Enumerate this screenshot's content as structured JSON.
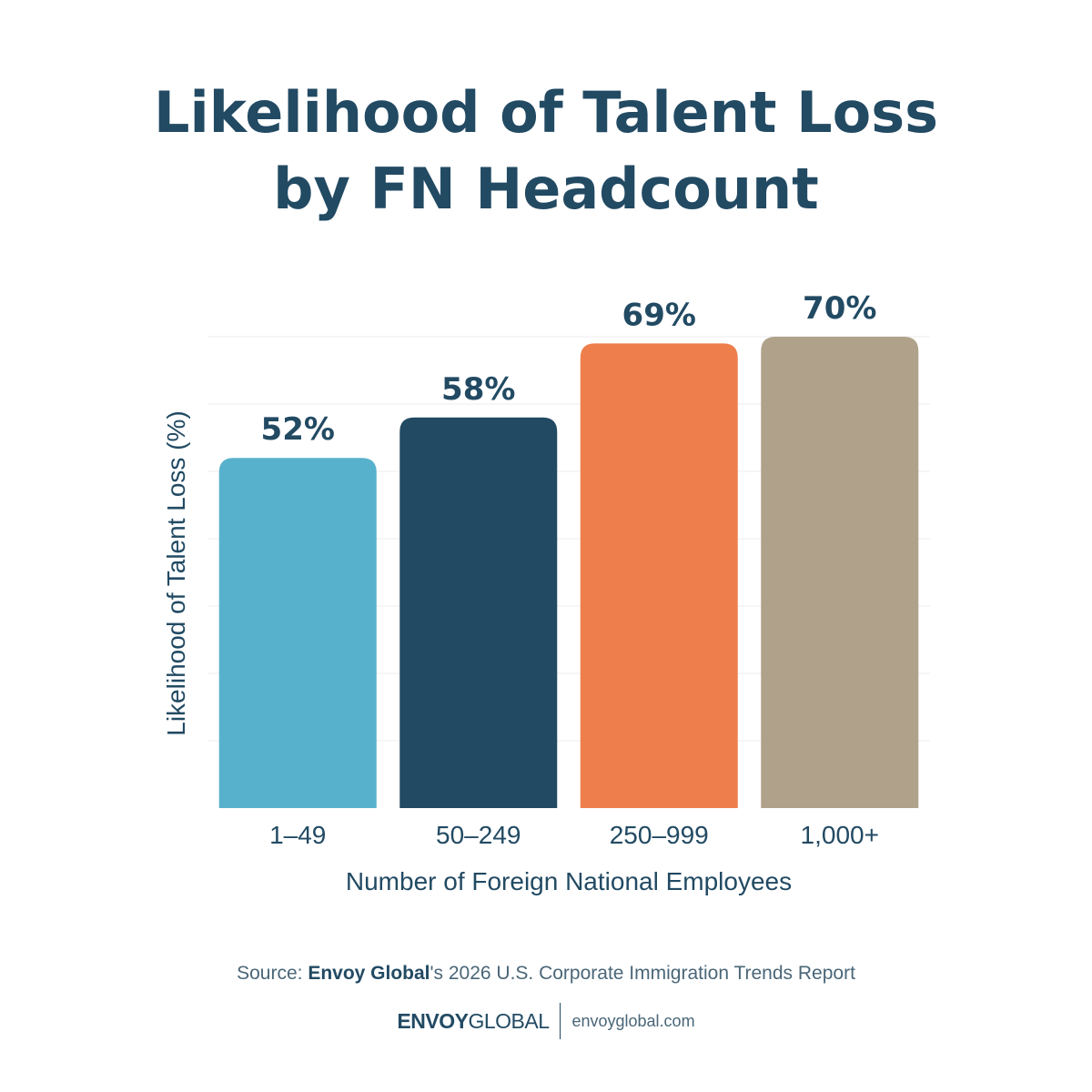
{
  "title_lines": [
    "Likelihood of Talent Loss",
    "by FN Headcount"
  ],
  "chart_data": {
    "type": "bar",
    "categories": [
      "1–49",
      "50–249",
      "250–999",
      "1,000+"
    ],
    "values": [
      52,
      58,
      69,
      70
    ],
    "value_labels": [
      "52%",
      "58%",
      "69%",
      "70%"
    ],
    "xlabel": "Number of Foreign National Employees",
    "ylabel": "Likelihood of Talent Loss (%)",
    "ylim": [
      0,
      70
    ],
    "grid": true,
    "colors": [
      "#58b1cc",
      "#224a63",
      "#ee7f4c",
      "#b0a18a"
    ]
  },
  "source": {
    "prefix": "Source: ",
    "org": "Envoy Global",
    "suffix": "'s 2026 U.S. Corporate Immigration Trends Report"
  },
  "footer": {
    "logo_bold": "ENVOY",
    "logo_regular": "GLOBAL",
    "website": "envoyglobal.com"
  }
}
